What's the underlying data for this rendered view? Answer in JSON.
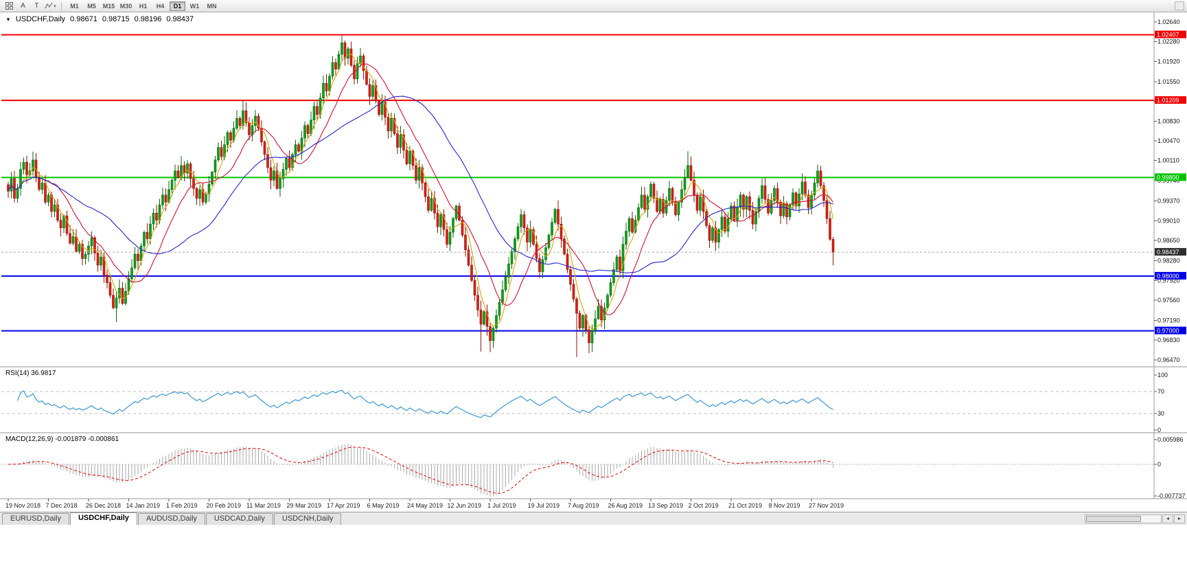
{
  "icons": {
    "collapse_marker": "▼",
    "dropdown_arrow": "▾",
    "scroll_left": "◄",
    "scroll_right": "►"
  },
  "toolbar": {
    "text_tool_a": "A",
    "text_tool_t": "T",
    "timeframes": [
      "M1",
      "M5",
      "M15",
      "M30",
      "H1",
      "H4",
      "D1",
      "W1",
      "MN"
    ],
    "active_timeframe": "D1"
  },
  "header": {
    "symbol": "USDCHF,Daily",
    "open": "0.98671",
    "high": "0.98715",
    "low": "0.98196",
    "close": "0.98437"
  },
  "indicator_labels": {
    "rsi": "RSI(14) 36.9817",
    "macd": "MACD(12,26,9) -0.001879 -0.000861"
  },
  "tabs": [
    {
      "label": "EURUSD,Daily",
      "active": false
    },
    {
      "label": "USDCHF,Daily",
      "active": true
    },
    {
      "label": "AUDUSD,Daily",
      "active": false
    },
    {
      "label": "USDCAD,Daily",
      "active": false
    },
    {
      "label": "USDCNH,Daily",
      "active": false
    }
  ],
  "chart_data": {
    "type": "candlestick",
    "title": "USDCHF,Daily",
    "candle_up_color": "#0BA318",
    "candle_up_border": "#056409",
    "candle_down_color": "#DC1F10",
    "candle_down_border": "#8E0F06",
    "price_axis_ticks": [
      "1.02640",
      "1.02280",
      "1.01920",
      "1.01550",
      "1.01190",
      "1.00830",
      "1.00470",
      "1.00110",
      "0.99740",
      "0.99370",
      "0.99010",
      "0.98650",
      "0.98280",
      "0.97920",
      "0.97560",
      "0.97190",
      "0.96830",
      "0.96470"
    ],
    "date_axis_ticks": [
      "19 Nov 2018",
      "7 Dec 2018",
      "26 Dec 2018",
      "14 Jan 2019",
      "1 Feb 2019",
      "20 Feb 2019",
      "11 Mar 2019",
      "29 Mar 2019",
      "17 Apr 2019",
      "6 May 2019",
      "24 May 2019",
      "12 Jun 2019",
      "1 Jul 2019",
      "19 Jul 2019",
      "7 Aug 2019",
      "26 Aug 2019",
      "13 Sep 2019",
      "2 Oct 2019",
      "21 Oct 2019",
      "8 Nov 2019",
      "27 Nov 2019"
    ],
    "bars_per_date_tick": 13,
    "closes": [
      0.9955,
      0.9978,
      0.9942,
      0.996,
      0.9995,
      1.0008,
      0.9985,
      0.9992,
      1.0012,
      0.998,
      0.9958,
      0.997,
      0.9935,
      0.9948,
      0.9918,
      0.993,
      0.9902,
      0.9888,
      0.991,
      0.9878,
      0.986,
      0.9872,
      0.9845,
      0.9858,
      0.9832,
      0.984,
      0.9855,
      0.987,
      0.9842,
      0.982,
      0.9835,
      0.9802,
      0.9788,
      0.9765,
      0.9742,
      0.976,
      0.9778,
      0.975,
      0.9772,
      0.9795,
      0.9815,
      0.984,
      0.9828,
      0.9855,
      0.988,
      0.9868,
      0.9895,
      0.9915,
      0.9902,
      0.993,
      0.9948,
      0.9935,
      0.9958,
      0.9975,
      0.9992,
      0.998,
      1.0002,
      0.9988,
      1.0005,
      0.9978,
      0.996,
      0.9942,
      0.9958,
      0.9935,
      0.995,
      0.9968,
      0.999,
      1.0012,
      1.0035,
      1.0018,
      1.004,
      1.0062,
      1.0048,
      1.007,
      1.0088,
      1.0075,
      1.0102,
      1.008,
      1.0058,
      1.0075,
      1.0092,
      1.007,
      1.0045,
      1.0022,
      0.9998,
      0.9975,
      0.9992,
      0.996,
      0.9978,
      0.9995,
      1.0015,
      0.9998,
      1.0022,
      1.004,
      1.0028,
      1.0052,
      1.0075,
      1.006,
      1.0085,
      1.011,
      1.0095,
      1.0125,
      1.0152,
      1.0138,
      1.0165,
      1.019,
      1.0178,
      1.0205,
      1.0226,
      1.0198,
      1.0215,
      1.0185,
      1.016,
      1.0188,
      1.0202,
      1.0175,
      1.015,
      1.0128,
      1.0148,
      1.012,
      1.0095,
      1.0118,
      1.009,
      1.0065,
      1.0088,
      1.006,
      1.0035,
      1.0058,
      1.003,
      1.0005,
      1.0028,
      1.0002,
      0.9975,
      0.9998,
      0.997,
      0.9945,
      0.992,
      0.9942,
      0.9915,
      0.989,
      0.9912,
      0.9885,
      0.9858,
      0.988,
      0.9905,
      0.9928,
      0.9902,
      0.9875,
      0.9848,
      0.982,
      0.9792,
      0.9765,
      0.9738,
      0.9712,
      0.9735,
      0.9708,
      0.9682,
      0.9705,
      0.9728,
      0.9752,
      0.9775,
      0.9798,
      0.9822,
      0.9845,
      0.9868,
      0.989,
      0.9912,
      0.9888,
      0.9862,
      0.9885,
      0.9858,
      0.9832,
      0.9808,
      0.983,
      0.9852,
      0.9875,
      0.9898,
      0.9922,
      0.9895,
      0.9868,
      0.984,
      0.9812,
      0.9785,
      0.9758,
      0.9732,
      0.9705,
      0.9728,
      0.9702,
      0.9678,
      0.97,
      0.9722,
      0.9745,
      0.972,
      0.9742,
      0.9765,
      0.9788,
      0.9812,
      0.9835,
      0.981,
      0.9858,
      0.9882,
      0.9905,
      0.988,
      0.9902,
      0.9925,
      0.9948,
      0.9922,
      0.9945,
      0.9968,
      0.9942,
      0.9918,
      0.994,
      0.9915,
      0.9938,
      0.996,
      0.9935,
      0.9912,
      0.9935,
      0.9958,
      0.998,
      1.0002,
      0.9975,
      0.9948,
      0.992,
      0.9945,
      0.9918,
      0.9892,
      0.9865,
      0.9888,
      0.9862,
      0.9885,
      0.9908,
      0.9882,
      0.9905,
      0.9928,
      0.9902,
      0.9925,
      0.9948,
      0.9922,
      0.9945,
      0.992,
      0.9895,
      0.9918,
      0.9942,
      0.9965,
      0.994,
      0.9915,
      0.9938,
      0.996,
      0.9935,
      0.991,
      0.9932,
      0.9908,
      0.993,
      0.9952,
      0.9928,
      0.995,
      0.9972,
      0.9948,
      0.9925,
      0.9948,
      0.997,
      0.9992,
      0.9965,
      0.9938,
      0.9905,
      0.98671,
      0.98437
    ],
    "candle_overrides": {
      "35": {
        "low": 0.9716
      },
      "76": {
        "high": 1.0121
      },
      "108": {
        "high": 1.0239
      },
      "153": {
        "low": 0.9662
      },
      "156": {
        "low": 0.9661
      },
      "184": {
        "low": 0.9652
      },
      "188": {
        "low": 0.9659
      },
      "220": {
        "high": 1.0028
      },
      "267": {
        "high": 0.98715,
        "low": 0.98196
      }
    },
    "last_bar_ohlc": [
      0.98671,
      0.98715,
      0.98196,
      0.98437
    ],
    "horizontal_levels": [
      {
        "price": 1.02407,
        "label": "1.02407",
        "color": "#F00000"
      },
      {
        "price": 1.01209,
        "label": "1.01209",
        "color": "#F00000"
      },
      {
        "price": 0.998,
        "label": "0.99800",
        "color": "#00C400"
      },
      {
        "price": 0.98,
        "label": "0.98000",
        "color": "#0000E8"
      },
      {
        "price": 0.97,
        "label": "0.97000",
        "color": "#0000E8"
      }
    ],
    "current_price": {
      "value": 0.98437,
      "label": "0.98437",
      "tag_color": "#2F2F2F"
    },
    "moving_averages": [
      {
        "name": "MA fast",
        "period": 5,
        "color": "#D8A400"
      },
      {
        "name": "MA mid",
        "period": 13,
        "color": "#D01030"
      },
      {
        "name": "MA slow",
        "period": 34,
        "color": "#2424CC"
      }
    ],
    "rsi": {
      "period": 14,
      "value": 36.9817,
      "levels": [
        70,
        30
      ],
      "axis_ticks": [
        "100",
        "70",
        "30",
        "0"
      ],
      "color": "#3C96D2",
      "level_line_color": "#BDBDBD"
    },
    "macd": {
      "fast": 12,
      "slow": 26,
      "signal": 9,
      "macd_value": -0.001879,
      "signal_value": -0.000861,
      "axis_ticks": [
        "0.005986",
        "0",
        "-0.007737"
      ],
      "histogram_color": "#A8A8A8",
      "signal_color": "#E00000"
    }
  }
}
